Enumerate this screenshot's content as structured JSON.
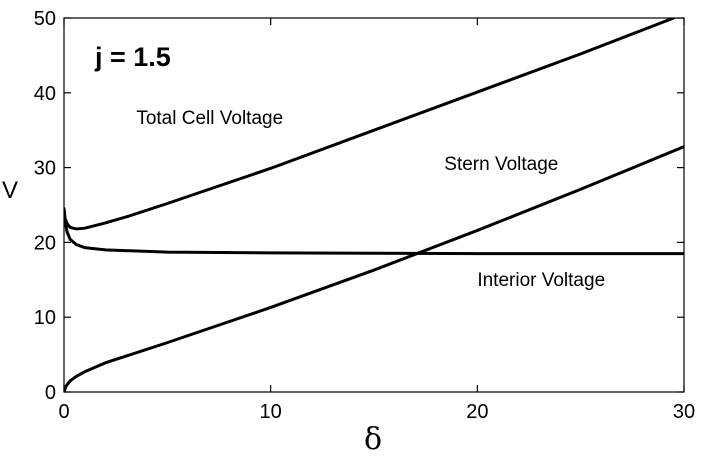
{
  "chart_data": {
    "type": "line",
    "title": "",
    "xlabel": "δ",
    "ylabel": "V",
    "xlim": [
      0,
      30
    ],
    "ylim": [
      0,
      50
    ],
    "xticks": [
      0,
      10,
      20,
      30
    ],
    "yticks": [
      0,
      10,
      20,
      30,
      40,
      50
    ],
    "grid": false,
    "legend": "none",
    "parameter_label": "j = 1.5",
    "series": [
      {
        "name": "Total Cell Voltage",
        "color": "#000000",
        "points": [
          [
            0,
            24.5
          ],
          [
            0.05,
            23.2
          ],
          [
            0.15,
            22.5
          ],
          [
            0.3,
            22.0
          ],
          [
            0.6,
            21.8
          ],
          [
            1,
            21.9
          ],
          [
            2,
            22.6
          ],
          [
            3,
            23.4
          ],
          [
            5,
            25.2
          ],
          [
            10,
            29.9
          ],
          [
            15,
            35.0
          ],
          [
            20,
            40.1
          ],
          [
            25,
            45.2
          ],
          [
            29.5,
            50.0
          ]
        ]
      },
      {
        "name": "Stern Voltage",
        "color": "#000000",
        "points": [
          [
            0,
            0
          ],
          [
            0.1,
            0.8
          ],
          [
            0.3,
            1.5
          ],
          [
            0.6,
            2.1
          ],
          [
            1,
            2.7
          ],
          [
            2,
            3.9
          ],
          [
            3,
            4.8
          ],
          [
            5,
            6.6
          ],
          [
            10,
            11.3
          ],
          [
            15,
            16.3
          ],
          [
            20,
            21.6
          ],
          [
            25,
            27.1
          ],
          [
            30,
            32.8
          ]
        ]
      },
      {
        "name": "Interior Voltage",
        "color": "#000000",
        "points": [
          [
            0,
            24.5
          ],
          [
            0.05,
            22.8
          ],
          [
            0.15,
            21.4
          ],
          [
            0.3,
            20.4
          ],
          [
            0.6,
            19.7
          ],
          [
            1,
            19.3
          ],
          [
            2,
            19.0
          ],
          [
            5,
            18.7
          ],
          [
            10,
            18.6
          ],
          [
            15,
            18.55
          ],
          [
            20,
            18.5
          ],
          [
            25,
            18.5
          ],
          [
            30,
            18.5
          ]
        ]
      }
    ],
    "annotations": [
      {
        "text": "Total Cell Voltage",
        "x": 3.5,
        "y": 35.8
      },
      {
        "text": "Stern Voltage",
        "x": 18.4,
        "y": 29.7
      },
      {
        "text": "Interior Voltage",
        "x": 20.0,
        "y": 14.2
      }
    ]
  }
}
